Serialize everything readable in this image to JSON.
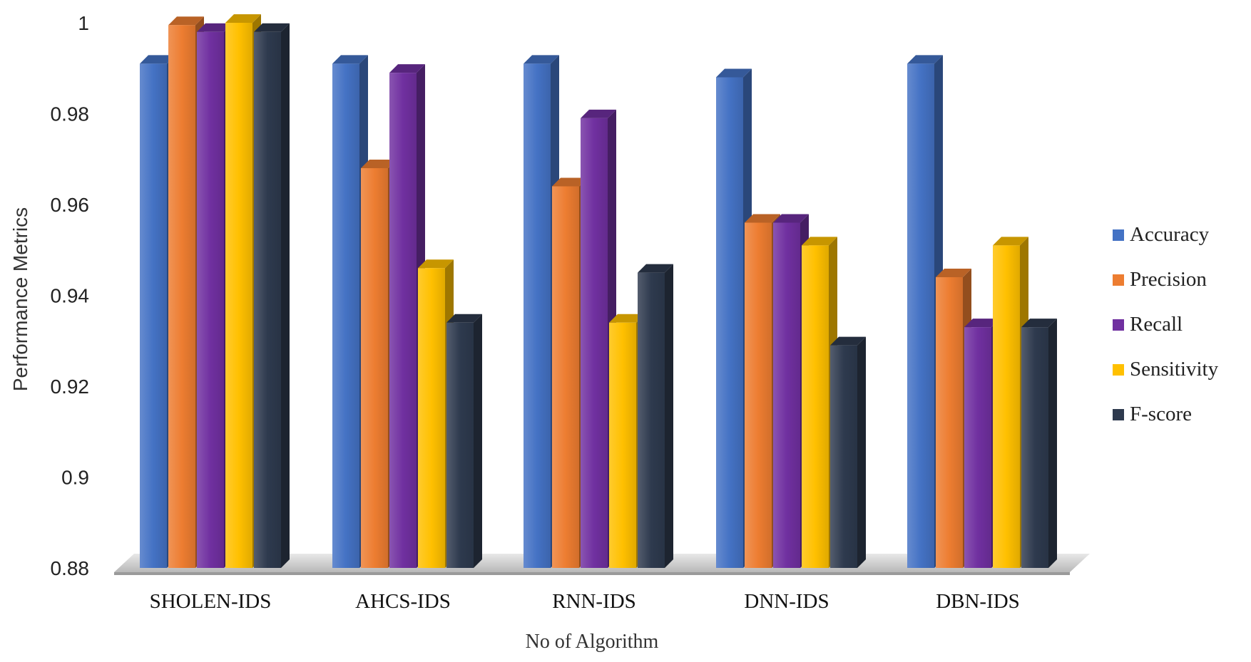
{
  "chart_data": {
    "type": "bar",
    "title": "",
    "xlabel": "No  of Algorithm",
    "ylabel": "Performance Metrics",
    "ylim": [
      0.88,
      1.0
    ],
    "yticks": [
      "0.88",
      "0.9",
      "0.92",
      "0.94",
      "0.96",
      "0.98",
      "1"
    ],
    "categories": [
      "SHOLEN-IDS",
      "AHCS-IDS",
      "RNN-IDS",
      "DNN-IDS",
      "DBN-IDS"
    ],
    "legend_position": "right",
    "grid": false,
    "series": [
      {
        "name": "Accuracy",
        "color": "#4472C4",
        "values": [
          0.991,
          0.991,
          0.991,
          0.988,
          0.991
        ]
      },
      {
        "name": "Precision",
        "color": "#ED7D31",
        "values": [
          0.9995,
          0.968,
          0.964,
          0.956,
          0.944
        ]
      },
      {
        "name": "Recall",
        "color": "#7030A0",
        "values": [
          0.998,
          0.989,
          0.979,
          0.956,
          0.933
        ]
      },
      {
        "name": "Sensitivity",
        "color": "#FFC000",
        "values": [
          1.0,
          0.946,
          0.934,
          0.951,
          0.951
        ]
      },
      {
        "name": "F-score",
        "color": "#2E3A4E",
        "values": [
          0.998,
          0.934,
          0.945,
          0.929,
          0.933
        ]
      }
    ]
  }
}
